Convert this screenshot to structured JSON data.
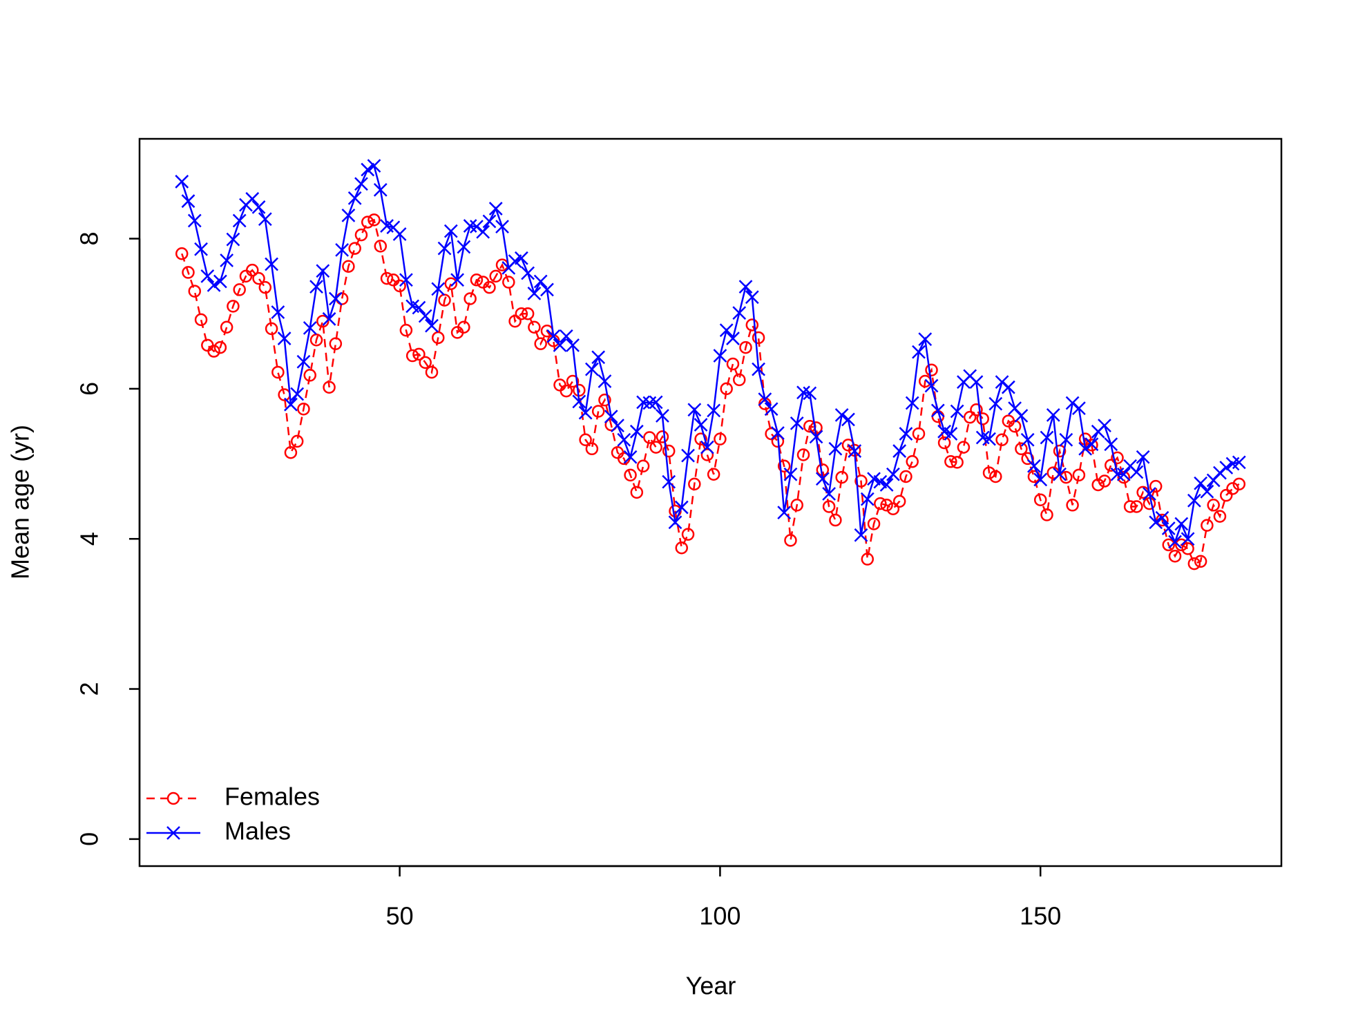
{
  "chart_data": {
    "type": "line",
    "xlabel": "Year",
    "ylabel": "Mean age (yr)",
    "x": [
      16,
      17,
      18,
      19,
      20,
      21,
      22,
      23,
      24,
      25,
      26,
      27,
      28,
      29,
      30,
      31,
      32,
      33,
      34,
      35,
      36,
      37,
      38,
      39,
      40,
      41,
      42,
      43,
      44,
      45,
      46,
      47,
      48,
      49,
      50,
      51,
      52,
      53,
      54,
      55,
      56,
      57,
      58,
      59,
      60,
      61,
      62,
      63,
      64,
      65,
      66,
      67,
      68,
      69,
      70,
      71,
      72,
      73,
      74,
      75,
      76,
      77,
      78,
      79,
      80,
      81,
      82,
      83,
      84,
      85,
      86,
      87,
      88,
      89,
      90,
      91,
      92,
      93,
      94,
      95,
      96,
      97,
      98,
      99,
      100,
      101,
      102,
      103,
      104,
      105,
      106,
      107,
      108,
      109,
      110,
      111,
      112,
      113,
      114,
      115,
      116,
      117,
      118,
      119,
      120,
      121,
      122,
      123,
      124,
      125,
      126,
      127,
      128,
      129,
      130,
      131,
      132,
      133,
      134,
      135,
      136,
      137,
      138,
      139,
      140,
      141,
      142,
      143,
      144,
      145,
      146,
      147,
      148,
      149,
      150,
      151,
      152,
      153,
      154,
      155,
      156,
      157,
      158,
      159,
      160,
      161,
      162,
      163,
      164,
      165,
      166,
      167,
      168,
      169,
      170,
      171,
      172,
      173,
      174,
      175,
      176,
      177,
      178,
      179,
      180,
      181
    ],
    "series": [
      {
        "name": "Females",
        "color": "#ff0000",
        "dash": true,
        "marker": "circle",
        "values": [
          7.8,
          7.55,
          7.3,
          6.92,
          6.58,
          6.5,
          6.55,
          6.82,
          7.1,
          7.32,
          7.5,
          7.58,
          7.47,
          7.35,
          6.8,
          6.22,
          5.92,
          5.15,
          5.3,
          5.73,
          6.18,
          6.65,
          6.9,
          6.02,
          6.6,
          7.2,
          7.63,
          7.87,
          8.05,
          8.22,
          8.25,
          7.9,
          7.47,
          7.45,
          7.37,
          6.78,
          6.44,
          6.46,
          6.35,
          6.22,
          6.68,
          7.18,
          7.4,
          6.75,
          6.82,
          7.2,
          7.45,
          7.42,
          7.35,
          7.5,
          7.65,
          7.42,
          6.9,
          7.0,
          7.0,
          6.82,
          6.6,
          6.77,
          6.64,
          6.05,
          5.97,
          6.1,
          5.98,
          5.32,
          5.2,
          5.7,
          5.85,
          5.52,
          5.15,
          5.07,
          4.85,
          4.62,
          4.97,
          5.35,
          5.22,
          5.36,
          5.17,
          4.37,
          3.88,
          4.06,
          4.73,
          5.33,
          5.12,
          4.86,
          5.33,
          6.0,
          6.33,
          6.12,
          6.55,
          6.85,
          6.68,
          5.8,
          5.4,
          5.3,
          4.97,
          3.98,
          4.45,
          5.12,
          5.5,
          5.48,
          4.92,
          4.43,
          4.25,
          4.82,
          5.25,
          5.18,
          4.77,
          3.73,
          4.2,
          4.47,
          4.45,
          4.4,
          4.5,
          4.83,
          5.03,
          5.4,
          6.1,
          6.25,
          5.63,
          5.28,
          5.03,
          5.02,
          5.22,
          5.62,
          5.72,
          5.6,
          4.88,
          4.83,
          5.32,
          5.57,
          5.5,
          5.2,
          5.07,
          4.83,
          4.52,
          4.32,
          4.88,
          5.17,
          4.82,
          4.45,
          4.85,
          5.33,
          5.25,
          4.72,
          4.77,
          4.98,
          5.08,
          4.82,
          4.43,
          4.43,
          4.62,
          4.47,
          4.7,
          4.25,
          3.92,
          3.77,
          3.92,
          3.87,
          3.67,
          3.7,
          4.18,
          4.45,
          4.3,
          4.58,
          4.67,
          4.73
        ]
      },
      {
        "name": "Males",
        "color": "#0000ff",
        "dash": false,
        "marker": "cross",
        "values": [
          8.76,
          8.5,
          8.24,
          7.86,
          7.5,
          7.38,
          7.43,
          7.71,
          7.99,
          8.24,
          8.45,
          8.53,
          8.42,
          8.26,
          7.66,
          7.02,
          6.67,
          5.79,
          5.93,
          6.36,
          6.81,
          7.36,
          7.57,
          6.93,
          7.2,
          7.85,
          8.31,
          8.54,
          8.73,
          8.92,
          8.97,
          8.65,
          8.17,
          8.15,
          8.06,
          7.45,
          7.1,
          7.08,
          6.97,
          6.84,
          7.33,
          7.87,
          8.1,
          7.45,
          7.89,
          8.17,
          8.16,
          8.09,
          8.23,
          8.4,
          8.16,
          7.61,
          7.7,
          7.74,
          7.54,
          7.27,
          7.43,
          7.32,
          6.7,
          6.58,
          6.7,
          6.58,
          5.83,
          5.68,
          6.26,
          6.42,
          6.1,
          5.63,
          5.51,
          5.32,
          5.09,
          5.43,
          5.82,
          5.81,
          5.82,
          5.64,
          4.76,
          4.22,
          4.42,
          5.11,
          5.72,
          5.52,
          5.22,
          5.71,
          6.44,
          6.78,
          6.67,
          7.01,
          7.36,
          7.22,
          6.26,
          5.86,
          5.73,
          5.41,
          4.35,
          4.86,
          5.54,
          5.95,
          5.94,
          5.36,
          4.8,
          4.6,
          5.2,
          5.65,
          5.59,
          5.17,
          4.05,
          4.53,
          4.8,
          4.76,
          4.72,
          4.86,
          5.17,
          5.4,
          5.81,
          6.49,
          6.66,
          6.04,
          5.71,
          5.43,
          5.4,
          5.7,
          6.09,
          6.17,
          6.09,
          5.35,
          5.33,
          5.8,
          6.09,
          6.02,
          5.74,
          5.64,
          5.32,
          4.97,
          4.79,
          5.35,
          5.65,
          4.86,
          5.32,
          5.81,
          5.74,
          5.2,
          5.26,
          5.43,
          5.51,
          5.26,
          4.86,
          4.86,
          4.97,
          4.89,
          5.09,
          4.6,
          4.22,
          4.28,
          4.14,
          3.96,
          4.2,
          4.0,
          4.51,
          4.74,
          4.63,
          4.78,
          4.88,
          4.95,
          5.0,
          5.02
        ]
      }
    ],
    "xlim": [
      9.4,
      187.6
    ],
    "xticks": [
      50,
      100,
      150
    ],
    "ylim": [
      -0.36,
      9.33
    ],
    "yticks": [
      0,
      2,
      4,
      6,
      8
    ],
    "grid": false,
    "legend": "bottomleft"
  }
}
